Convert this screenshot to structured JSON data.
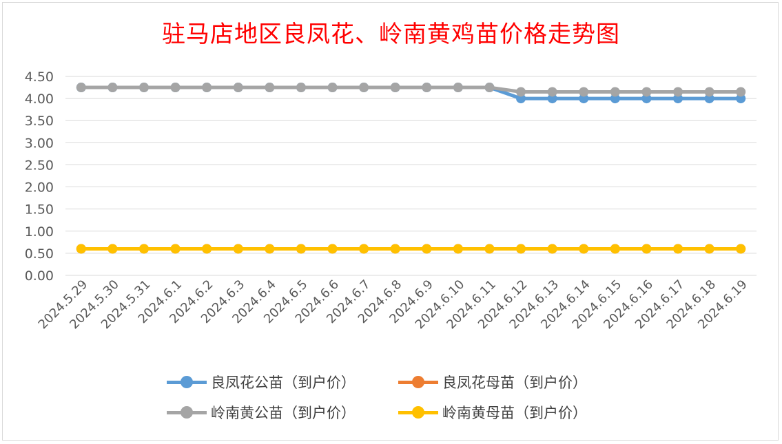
{
  "chart_data": {
    "type": "line",
    "title": "驻马店地区良凤花、岭南黄鸡苗价格走势图",
    "categories": [
      "2024.5.29",
      "2024.5.30",
      "2024.5.31",
      "2024.6.1",
      "2024.6.2",
      "2024.6.3",
      "2024.6.4",
      "2024.6.5",
      "2024.6.6",
      "2024.6.7",
      "2024.6.8",
      "2024.6.9",
      "2024.6.10",
      "2024.6.11",
      "2024.6.12",
      "2024.6.13",
      "2024.6.14",
      "2024.6.15",
      "2024.6.16",
      "2024.6.17",
      "2024.6.18",
      "2024.6.19"
    ],
    "yticks": [
      "0.00",
      "0.50",
      "1.00",
      "1.50",
      "2.00",
      "2.50",
      "3.00",
      "3.50",
      "4.00",
      "4.50"
    ],
    "ylim": [
      0,
      4.5
    ],
    "grid": true,
    "legend_position": "bottom",
    "series": [
      {
        "name": "良凤花公苗（到户价）",
        "color": "#5b9bd5",
        "values": [
          4.25,
          4.25,
          4.25,
          4.25,
          4.25,
          4.25,
          4.25,
          4.25,
          4.25,
          4.25,
          4.25,
          4.25,
          4.25,
          4.25,
          4.0,
          4.0,
          4.0,
          4.0,
          4.0,
          4.0,
          4.0,
          4.0
        ]
      },
      {
        "name": "良凤花母苗（到户价）",
        "color": "#ed7d31",
        "values": [
          0.6,
          0.6,
          0.6,
          0.6,
          0.6,
          0.6,
          0.6,
          0.6,
          0.6,
          0.6,
          0.6,
          0.6,
          0.6,
          0.6,
          0.6,
          0.6,
          0.6,
          0.6,
          0.6,
          0.6,
          0.6,
          0.6
        ]
      },
      {
        "name": "岭南黄公苗（到户价）",
        "color": "#a5a5a5",
        "values": [
          4.25,
          4.25,
          4.25,
          4.25,
          4.25,
          4.25,
          4.25,
          4.25,
          4.25,
          4.25,
          4.25,
          4.25,
          4.25,
          4.25,
          4.15,
          4.15,
          4.15,
          4.15,
          4.15,
          4.15,
          4.15,
          4.15
        ]
      },
      {
        "name": "岭南黄母苗（到户价）",
        "color": "#ffc000",
        "values": [
          0.6,
          0.6,
          0.6,
          0.6,
          0.6,
          0.6,
          0.6,
          0.6,
          0.6,
          0.6,
          0.6,
          0.6,
          0.6,
          0.6,
          0.6,
          0.6,
          0.6,
          0.6,
          0.6,
          0.6,
          0.6,
          0.6
        ]
      }
    ]
  }
}
